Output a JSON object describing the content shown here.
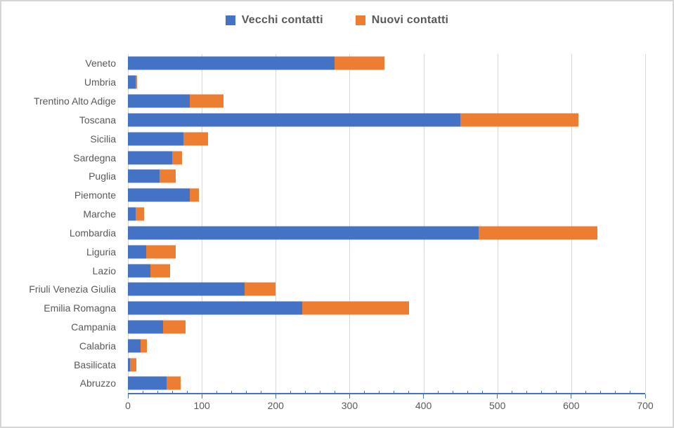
{
  "window": {
    "background": "#FFFFFF",
    "border_color": "#D6D6D6"
  },
  "chart_data": {
    "type": "bar",
    "orientation": "horizontal",
    "stacked": true,
    "title": "",
    "xlabel": "",
    "ylabel": "",
    "categories": [
      "Veneto",
      "Umbria",
      "Trentino Alto Adige",
      "Toscana",
      "Sicilia",
      "Sardegna",
      "Puglia",
      "Piemonte",
      "Marche",
      "Lombardia",
      "Liguria",
      "Lazio",
      "Friuli Venezia Giulia",
      "Emilia Romagna",
      "Campania",
      "Calabria",
      "Basilicata",
      "Abruzzo"
    ],
    "series": [
      {
        "name": "Vecchi contatti",
        "color": "#4472C4",
        "values": [
          280,
          10,
          84,
          450,
          75,
          60,
          43,
          84,
          10,
          475,
          25,
          30,
          158,
          236,
          48,
          17,
          3,
          52
        ]
      },
      {
        "name": "Nuovi contatti",
        "color": "#ED7D31",
        "values": [
          67,
          2,
          45,
          160,
          33,
          13,
          22,
          12,
          12,
          160,
          40,
          27,
          42,
          144,
          30,
          9,
          8,
          19
        ]
      }
    ],
    "xlim": [
      0,
      700
    ],
    "x_major_tick": 100,
    "x_minor_tick": 20,
    "x_tick_labels": [
      "0",
      "100",
      "200",
      "300",
      "400",
      "500",
      "600",
      "700"
    ],
    "grid": "vertical-major",
    "gridline_color": "#D9D9D9",
    "axis_line_color": "#4472C4",
    "text_color": "#595959",
    "legend_position": "top-center"
  }
}
